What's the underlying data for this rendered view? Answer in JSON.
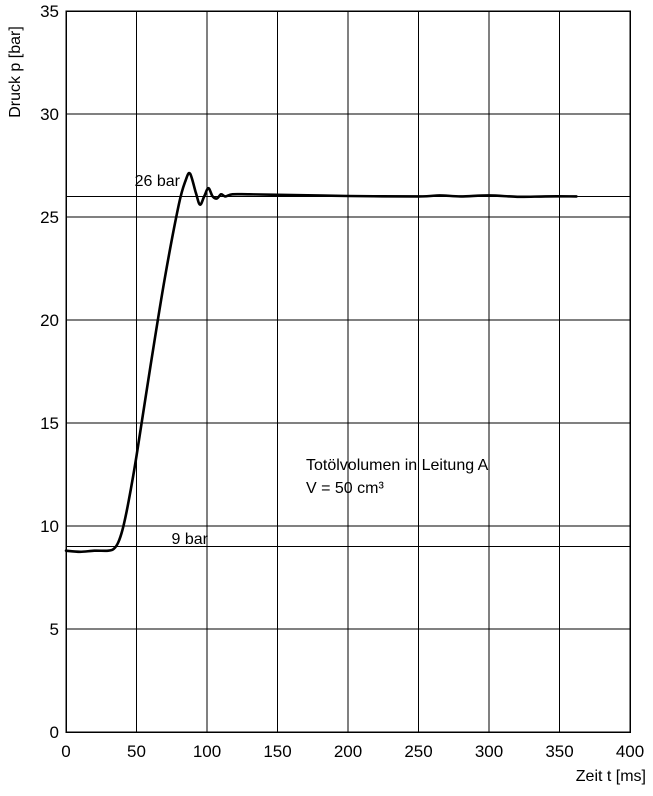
{
  "chart_data": {
    "type": "line",
    "xlabel": "Zeit t [ms]",
    "ylabel": "Druck p [bar]",
    "xlim": [
      0,
      400
    ],
    "ylim": [
      0,
      35
    ],
    "xticks": [
      0,
      50,
      100,
      150,
      200,
      250,
      300,
      350,
      400
    ],
    "yticks": [
      0,
      5,
      10,
      15,
      20,
      25,
      30,
      35
    ],
    "grid": true,
    "reference_lines": [
      {
        "y": 26,
        "label": "26 bar"
      },
      {
        "y": 9,
        "label": "9 bar"
      }
    ],
    "annotation": {
      "line1": "Totölvolumen in Leitung A",
      "line2": "V = 50 cm³"
    },
    "series": [
      {
        "x": [
          0,
          10,
          20,
          30,
          34,
          37,
          40,
          43,
          46,
          50,
          60,
          70,
          80,
          85,
          88,
          92,
          95,
          98,
          101,
          104,
          107,
          110,
          113,
          118,
          130,
          150,
          200,
          250,
          265,
          280,
          300,
          320,
          340,
          362
        ],
        "y": [
          8.8,
          8.75,
          8.8,
          8.8,
          8.9,
          9.2,
          9.8,
          10.7,
          11.8,
          13.4,
          17.8,
          22.0,
          25.6,
          26.8,
          27.1,
          26.2,
          25.6,
          26.0,
          26.4,
          26.0,
          25.9,
          26.1,
          26.0,
          26.1,
          26.1,
          26.08,
          26.02,
          26.0,
          26.05,
          26.0,
          26.05,
          25.98,
          26.0,
          26.0
        ]
      }
    ]
  }
}
